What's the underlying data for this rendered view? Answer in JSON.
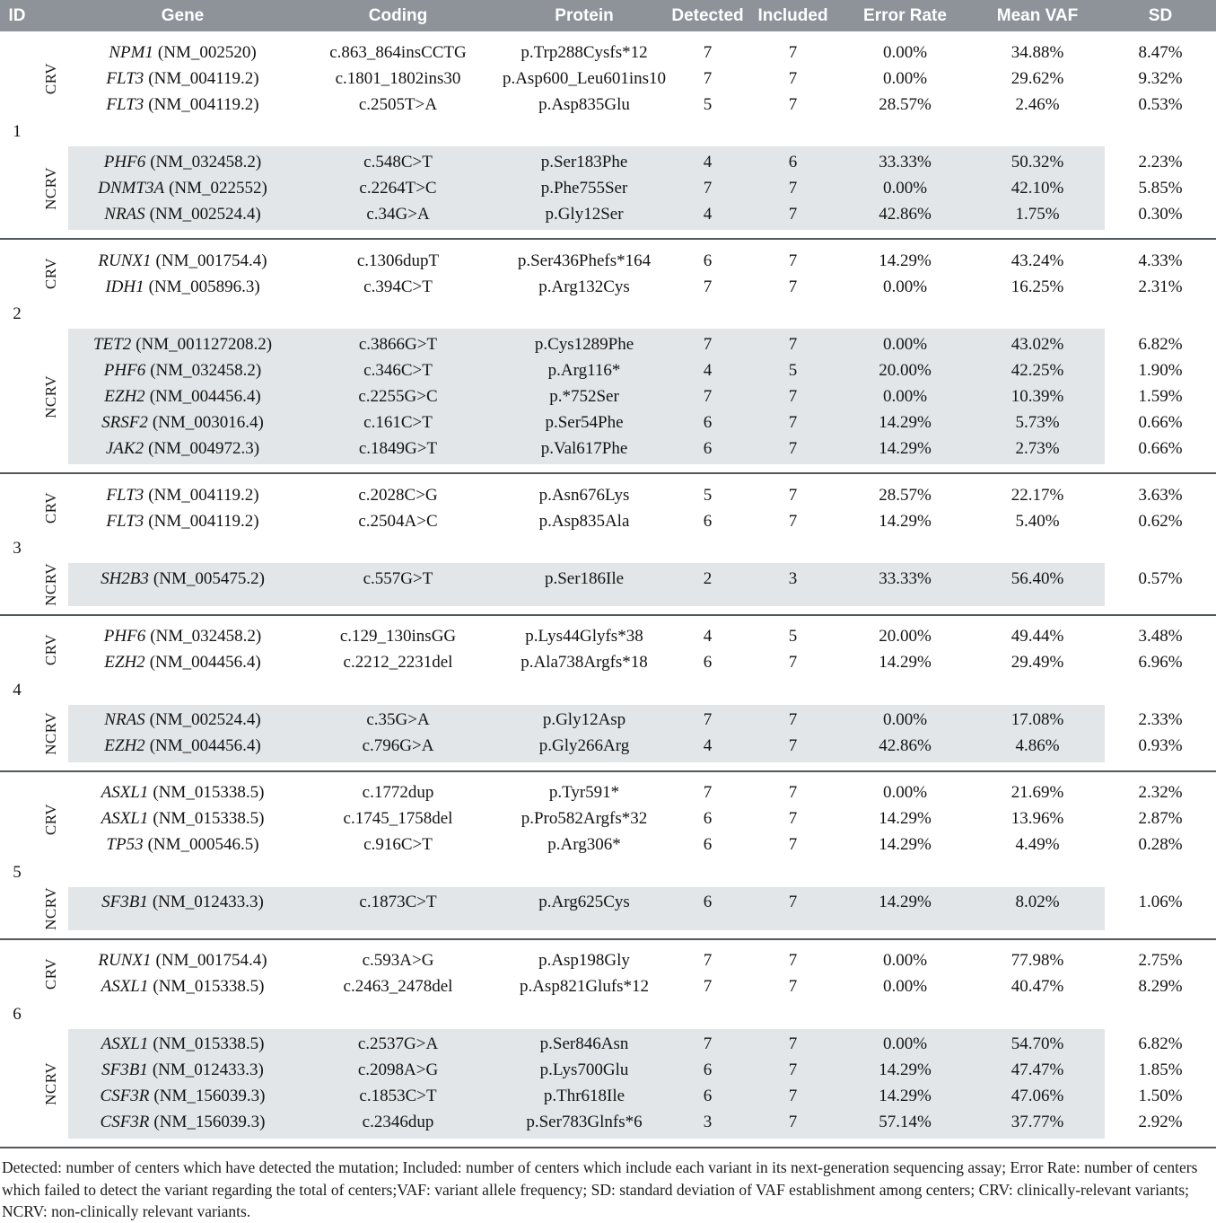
{
  "table": {
    "header": {
      "columns": [
        "ID",
        "Gene",
        "Coding",
        "Protein",
        "Detected",
        "Included",
        "Error Rate",
        "Mean VAF",
        "SD"
      ],
      "bg": "#8d9399",
      "text_color": "#ffffff"
    },
    "row_shade_color": "#e2e6e9",
    "groups": [
      {
        "id": "1",
        "sections": [
          {
            "label": "CRV",
            "shaded": false,
            "rows": [
              {
                "gene": "NPM1",
                "accession": "(NM_002520)",
                "coding": "c.863_864insCCTG",
                "protein": "p.Trp288Cysfs*12",
                "detected": "7",
                "included": "7",
                "error_rate": "0.00%",
                "mean_vaf": "34.88%",
                "sd": "8.47%"
              },
              {
                "gene": "FLT3",
                "accession": "(NM_004119.2)",
                "coding": "c.1801_1802ins30",
                "protein": "p.Asp600_Leu601ins10",
                "detected": "7",
                "included": "7",
                "error_rate": "0.00%",
                "mean_vaf": "29.62%",
                "sd": "9.32%"
              },
              {
                "gene": "FLT3",
                "accession": "(NM_004119.2)",
                "coding": "c.2505T>A",
                "protein": "p.Asp835Glu",
                "detected": "5",
                "included": "7",
                "error_rate": "28.57%",
                "mean_vaf": "2.46%",
                "sd": "0.53%"
              }
            ]
          },
          {
            "label": "NCRV",
            "shaded": true,
            "rows": [
              {
                "gene": "PHF6",
                "accession": "(NM_032458.2)",
                "coding": "c.548C>T",
                "protein": "p.Ser183Phe",
                "detected": "4",
                "included": "6",
                "error_rate": "33.33%",
                "mean_vaf": "50.32%",
                "sd": "2.23%"
              },
              {
                "gene": "DNMT3A",
                "accession": "(NM_022552)",
                "coding": "c.2264T>C",
                "protein": "p.Phe755Ser",
                "detected": "7",
                "included": "7",
                "error_rate": "0.00%",
                "mean_vaf": "42.10%",
                "sd": "5.85%"
              },
              {
                "gene": "NRAS",
                "accession": "(NM_002524.4)",
                "coding": "c.34G>A",
                "protein": "p.Gly12Ser",
                "detected": "4",
                "included": "7",
                "error_rate": "42.86%",
                "mean_vaf": "1.75%",
                "sd": "0.30%"
              }
            ]
          }
        ]
      },
      {
        "id": "2",
        "sections": [
          {
            "label": "CRV",
            "shaded": false,
            "rows": [
              {
                "gene": "RUNX1",
                "accession": "(NM_001754.4)",
                "coding": "c.1306dupT",
                "protein": "p.Ser436Phefs*164",
                "detected": "6",
                "included": "7",
                "error_rate": "14.29%",
                "mean_vaf": "43.24%",
                "sd": "4.33%"
              },
              {
                "gene": "IDH1",
                "accession": "(NM_005896.3)",
                "coding": "c.394C>T",
                "protein": "p.Arg132Cys",
                "detected": "7",
                "included": "7",
                "error_rate": "0.00%",
                "mean_vaf": "16.25%",
                "sd": "2.31%"
              }
            ]
          },
          {
            "label": "NCRV",
            "shaded": true,
            "rows": [
              {
                "gene": "TET2",
                "accession": "(NM_001127208.2)",
                "coding": "c.3866G>T",
                "protein": "p.Cys1289Phe",
                "detected": "7",
                "included": "7",
                "error_rate": "0.00%",
                "mean_vaf": "43.02%",
                "sd": "6.82%"
              },
              {
                "gene": "PHF6",
                "accession": "(NM_032458.2)",
                "coding": "c.346C>T",
                "protein": "p.Arg116*",
                "detected": "4",
                "included": "5",
                "error_rate": "20.00%",
                "mean_vaf": "42.25%",
                "sd": "1.90%"
              },
              {
                "gene": "EZH2",
                "accession": "(NM_004456.4)",
                "coding": "c.2255G>C",
                "protein": "p.*752Ser",
                "detected": "7",
                "included": "7",
                "error_rate": "0.00%",
                "mean_vaf": "10.39%",
                "sd": "1.59%"
              },
              {
                "gene": "SRSF2",
                "accession": "(NM_003016.4)",
                "coding": "c.161C>T",
                "protein": "p.Ser54Phe",
                "detected": "6",
                "included": "7",
                "error_rate": "14.29%",
                "mean_vaf": "5.73%",
                "sd": "0.66%"
              },
              {
                "gene": "JAK2",
                "accession": "(NM_004972.3)",
                "coding": "c.1849G>T",
                "protein": "p.Val617Phe",
                "detected": "6",
                "included": "7",
                "error_rate": "14.29%",
                "mean_vaf": "2.73%",
                "sd": "0.66%"
              }
            ]
          }
        ]
      },
      {
        "id": "3",
        "sections": [
          {
            "label": "CRV",
            "shaded": false,
            "rows": [
              {
                "gene": "FLT3",
                "accession": "(NM_004119.2)",
                "coding": "c.2028C>G",
                "protein": "p.Asn676Lys",
                "detected": "5",
                "included": "7",
                "error_rate": "28.57%",
                "mean_vaf": "22.17%",
                "sd": "3.63%"
              },
              {
                "gene": "FLT3",
                "accession": "(NM_004119.2)",
                "coding": "c.2504A>C",
                "protein": "p.Asp835Ala",
                "detected": "6",
                "included": "7",
                "error_rate": "14.29%",
                "mean_vaf": "5.40%",
                "sd": "0.62%"
              }
            ]
          },
          {
            "label": "NCRV",
            "shaded": true,
            "rows": [
              {
                "gene": "SH2B3",
                "accession": "(NM_005475.2)",
                "coding": "c.557G>T",
                "protein": "p.Ser186Ile",
                "detected": "2",
                "included": "3",
                "error_rate": "33.33%",
                "mean_vaf": "56.40%",
                "sd": "0.57%"
              }
            ]
          }
        ]
      },
      {
        "id": "4",
        "sections": [
          {
            "label": "CRV",
            "shaded": false,
            "rows": [
              {
                "gene": "PHF6",
                "accession": "(NM_032458.2)",
                "coding": "c.129_130insGG",
                "protein": "p.Lys44Glyfs*38",
                "detected": "4",
                "included": "5",
                "error_rate": "20.00%",
                "mean_vaf": "49.44%",
                "sd": "3.48%"
              },
              {
                "gene": "EZH2",
                "accession": "(NM_004456.4)",
                "coding": "c.2212_2231del",
                "protein": "p.Ala738Argfs*18",
                "detected": "6",
                "included": "7",
                "error_rate": "14.29%",
                "mean_vaf": "29.49%",
                "sd": "6.96%"
              }
            ]
          },
          {
            "label": "NCRV",
            "shaded": true,
            "rows": [
              {
                "gene": "NRAS",
                "accession": "(NM_002524.4)",
                "coding": "c.35G>A",
                "protein": "p.Gly12Asp",
                "detected": "7",
                "included": "7",
                "error_rate": "0.00%",
                "mean_vaf": "17.08%",
                "sd": "2.33%"
              },
              {
                "gene": "EZH2",
                "accession": "(NM_004456.4)",
                "coding": "c.796G>A",
                "protein": "p.Gly266Arg",
                "detected": "4",
                "included": "7",
                "error_rate": "42.86%",
                "mean_vaf": "4.86%",
                "sd": "0.93%"
              }
            ]
          }
        ]
      },
      {
        "id": "5",
        "sections": [
          {
            "label": "CRV",
            "shaded": false,
            "rows": [
              {
                "gene": "ASXL1",
                "accession": "(NM_015338.5)",
                "coding": "c.1772dup",
                "protein": "p.Tyr591*",
                "detected": "7",
                "included": "7",
                "error_rate": "0.00%",
                "mean_vaf": "21.69%",
                "sd": "2.32%"
              },
              {
                "gene": "ASXL1",
                "accession": "(NM_015338.5)",
                "coding": "c.1745_1758del",
                "protein": "p.Pro582Argfs*32",
                "detected": "6",
                "included": "7",
                "error_rate": "14.29%",
                "mean_vaf": "13.96%",
                "sd": "2.87%"
              },
              {
                "gene": "TP53",
                "accession": "(NM_000546.5)",
                "coding": "c.916C>T",
                "protein": "p.Arg306*",
                "detected": "6",
                "included": "7",
                "error_rate": "14.29%",
                "mean_vaf": "4.49%",
                "sd": "0.28%"
              }
            ]
          },
          {
            "label": "NCRV",
            "shaded": true,
            "rows": [
              {
                "gene": "SF3B1",
                "accession": "(NM_012433.3)",
                "coding": "c.1873C>T",
                "protein": "p.Arg625Cys",
                "detected": "6",
                "included": "7",
                "error_rate": "14.29%",
                "mean_vaf": "8.02%",
                "sd": "1.06%"
              }
            ]
          }
        ]
      },
      {
        "id": "6",
        "sections": [
          {
            "label": "CRV",
            "shaded": false,
            "rows": [
              {
                "gene": "RUNX1",
                "accession": "(NM_001754.4)",
                "coding": "c.593A>G",
                "protein": "p.Asp198Gly",
                "detected": "7",
                "included": "7",
                "error_rate": "0.00%",
                "mean_vaf": "77.98%",
                "sd": "2.75%"
              },
              {
                "gene": "ASXL1",
                "accession": "(NM_015338.5)",
                "coding": "c.2463_2478del",
                "protein": "p.Asp821Glufs*12",
                "detected": "7",
                "included": "7",
                "error_rate": "0.00%",
                "mean_vaf": "40.47%",
                "sd": "8.29%"
              }
            ]
          },
          {
            "label": "NCRV",
            "shaded": true,
            "rows": [
              {
                "gene": "ASXL1",
                "accession": "(NM_015338.5)",
                "coding": "c.2537G>A",
                "protein": "p.Ser846Asn",
                "detected": "7",
                "included": "7",
                "error_rate": "0.00%",
                "mean_vaf": "54.70%",
                "sd": "6.82%"
              },
              {
                "gene": "SF3B1",
                "accession": "(NM_012433.3)",
                "coding": "c.2098A>G",
                "protein": "p.Lys700Glu",
                "detected": "6",
                "included": "7",
                "error_rate": "14.29%",
                "mean_vaf": "47.47%",
                "sd": "1.85%"
              },
              {
                "gene": "CSF3R",
                "accession": "(NM_156039.3)",
                "coding": "c.1853C>T",
                "protein": "p.Thr618Ile",
                "detected": "6",
                "included": "7",
                "error_rate": "14.29%",
                "mean_vaf": "47.06%",
                "sd": "1.50%"
              },
              {
                "gene": "CSF3R",
                "accession": "(NM_156039.3)",
                "coding": "c.2346dup",
                "protein": "p.Ser783Glnfs*6",
                "detected": "3",
                "included": "7",
                "error_rate": "57.14%",
                "mean_vaf": "37.77%",
                "sd": "2.92%"
              }
            ]
          }
        ]
      }
    ],
    "footnote": "Detected: number of centers which have detected the mutation; Included: number of centers which include each variant in its next-generation sequencing assay; Error Rate: number of centers which failed to detect the variant regarding the total of centers;VAF: variant allele frequency; SD: standard deviation of VAF establishment among centers; CRV: clinically-relevant variants; NCRV: non-clinically relevant variants."
  }
}
